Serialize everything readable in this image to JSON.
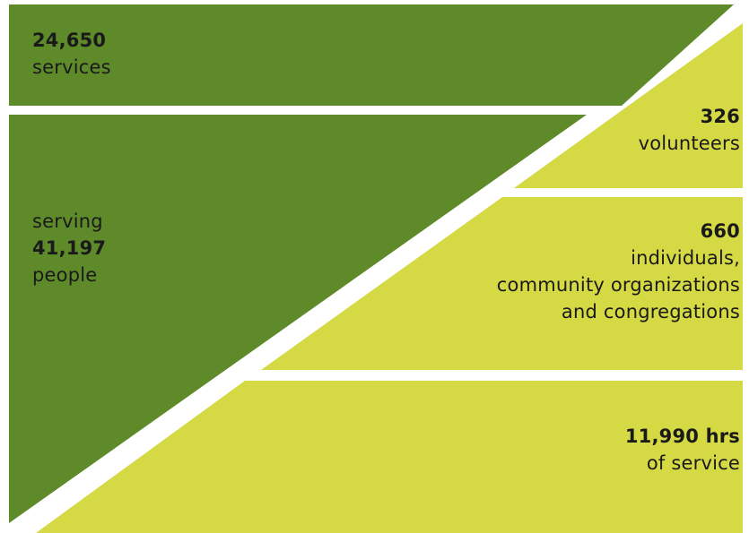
{
  "colors": {
    "dark_green": "#5f8a2a",
    "light_green": "#d4d944",
    "background": "#ffffff"
  },
  "services_block": {
    "value": "24,650",
    "label": "services"
  },
  "people_block": {
    "prefix": "serving",
    "value": "41,197",
    "label": "people"
  },
  "volunteers_block": {
    "value": "326",
    "label": "volunteers"
  },
  "partners_block": {
    "value": "660",
    "line1": "individuals,",
    "line2": "community organizations",
    "line3": "and congregations"
  },
  "hours_block": {
    "value": "11,990 hrs",
    "label": "of service"
  }
}
